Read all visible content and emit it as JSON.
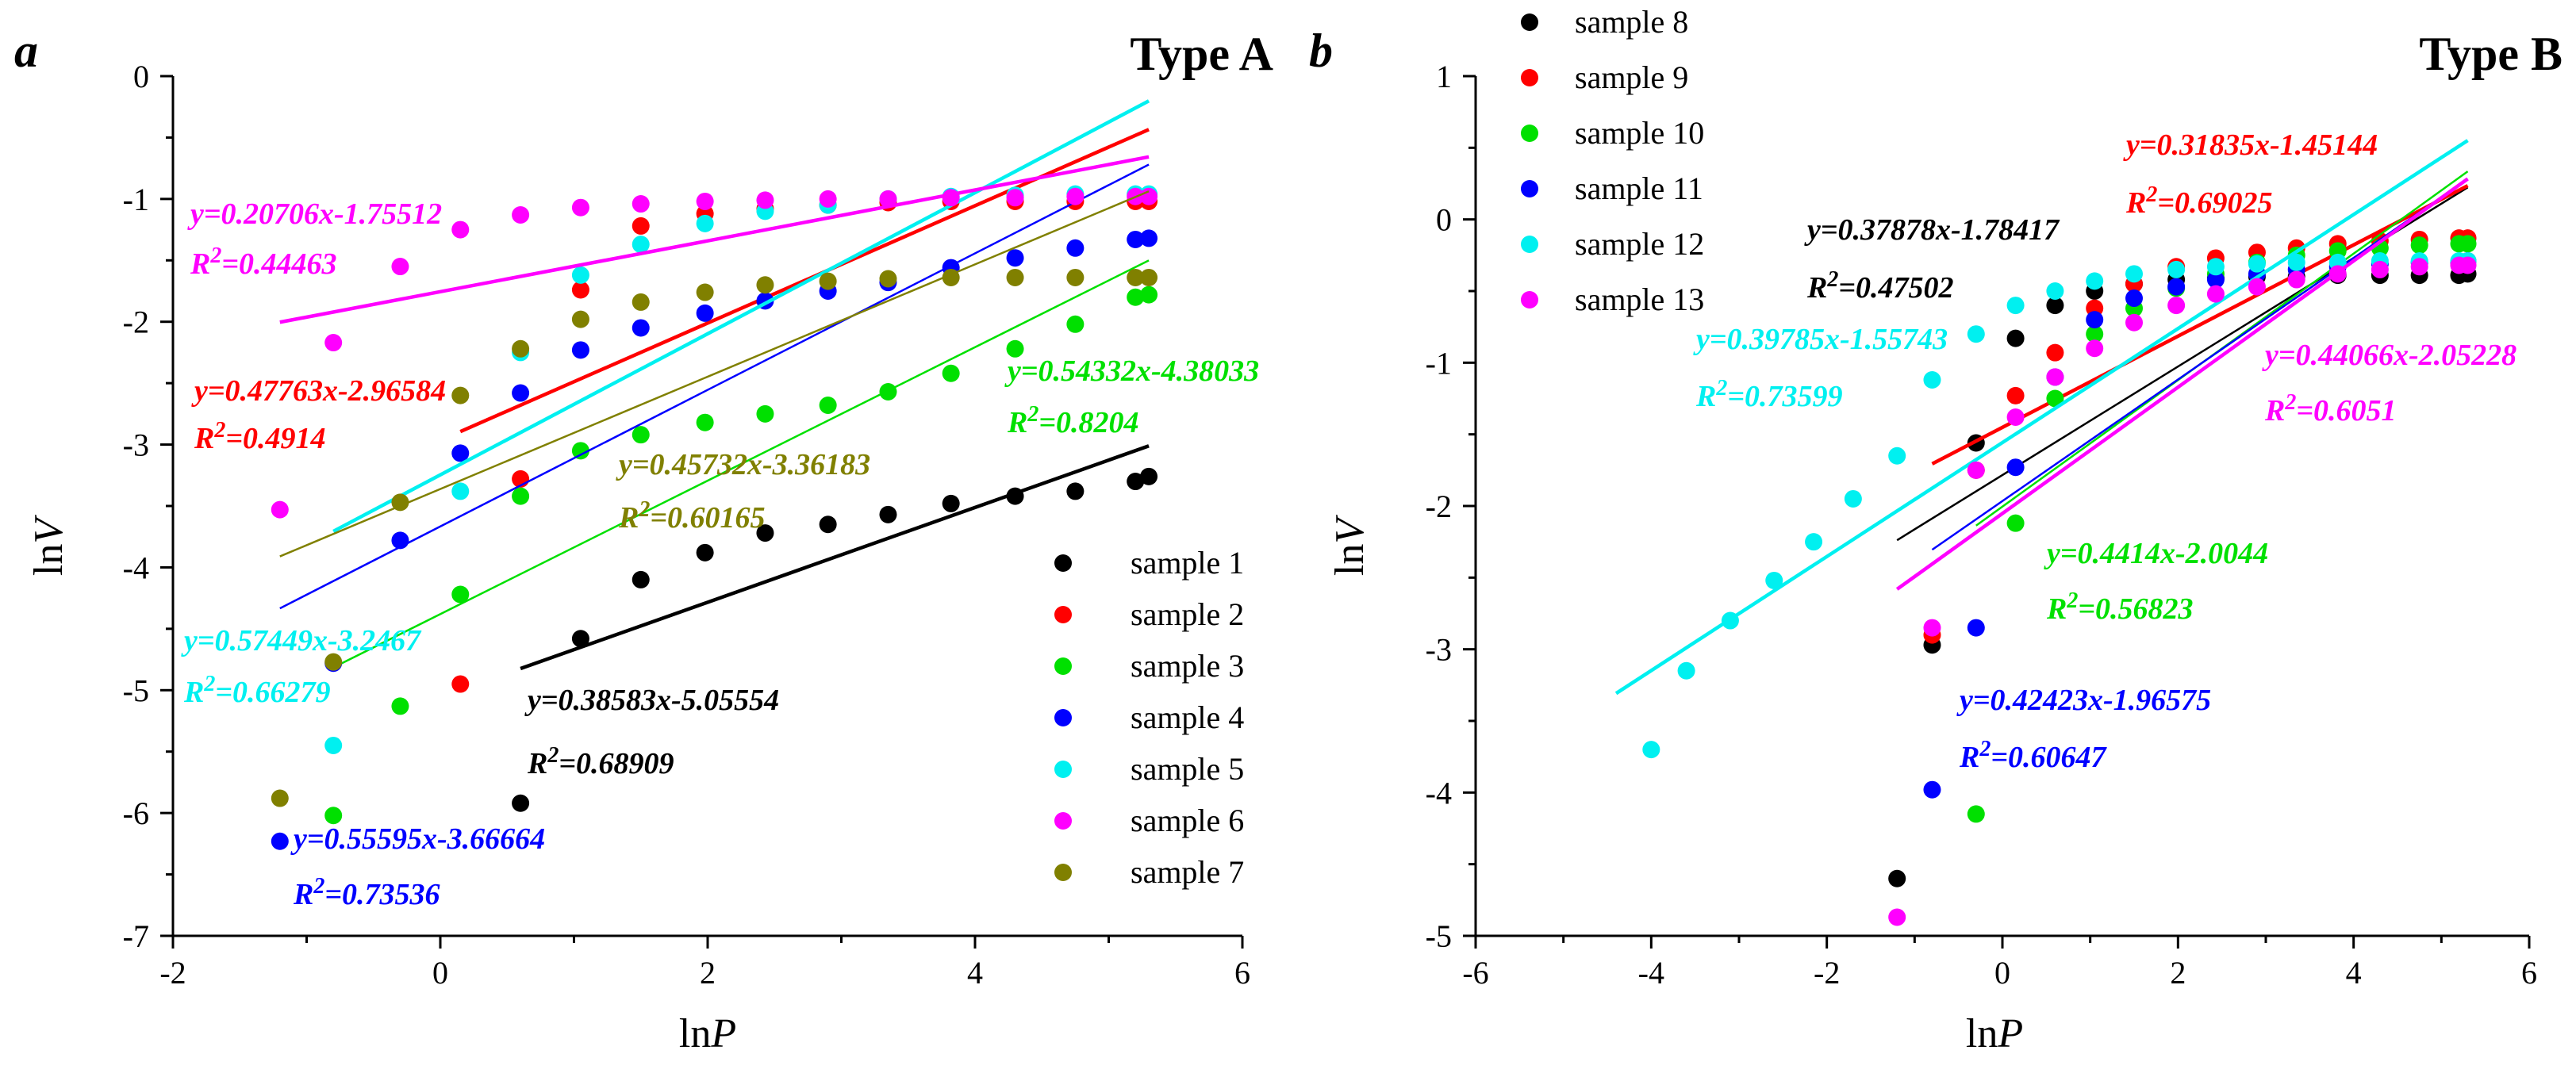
{
  "chart_data": [
    {
      "panel": "a",
      "type": "scatter",
      "title": "Type A",
      "xlabel": "lnP",
      "ylabel": "lnV",
      "xlim": [
        -2,
        6
      ],
      "ylim": [
        -7,
        0
      ],
      "xticks": [
        "-2",
        "0",
        "2",
        "4",
        "6"
      ],
      "yticks": [
        "0",
        "-1",
        "-2",
        "-3",
        "-4",
        "-5",
        "-6",
        "-7"
      ],
      "legend_position": "bottom-right",
      "series": [
        {
          "name": "sample 1",
          "color": "#000000",
          "x": [
            0.6,
            1.05,
            1.5,
            1.98,
            2.43,
            2.9,
            3.35,
            3.82,
            4.3,
            4.75,
            5.2,
            5.3
          ],
          "y": [
            -5.92,
            -4.58,
            -4.1,
            -3.88,
            -3.72,
            -3.65,
            -3.57,
            -3.48,
            -3.42,
            -3.38,
            -3.3,
            -3.26
          ],
          "fit_x": [
            0.6,
            5.3
          ],
          "eq": "y=0.38583x-5.05554",
          "r2": "=0.68909"
        },
        {
          "name": "sample 2",
          "color": "#ff0000",
          "x": [
            0.15,
            0.6,
            1.05,
            1.5,
            1.98,
            2.43,
            2.9,
            3.35,
            3.82,
            4.3,
            4.75,
            5.2,
            5.3
          ],
          "y": [
            -4.95,
            -3.28,
            -1.74,
            -1.22,
            -1.12,
            -1.08,
            -1.05,
            -1.03,
            -1.02,
            -1.02,
            -1.02,
            -1.02,
            -1.02
          ],
          "fit_x": [
            0.15,
            5.3
          ],
          "eq": "y=0.47763x-2.96584",
          "r2": "=0.4914"
        },
        {
          "name": "sample 3",
          "color": "#00e000",
          "x": [
            -0.8,
            -0.3,
            0.15,
            0.6,
            1.05,
            1.5,
            1.98,
            2.43,
            2.9,
            3.35,
            3.82,
            4.3,
            4.75,
            5.2,
            5.3
          ],
          "y": [
            -6.02,
            -5.13,
            -4.22,
            -3.42,
            -3.05,
            -2.92,
            -2.82,
            -2.75,
            -2.68,
            -2.57,
            -2.42,
            -2.22,
            -2.02,
            -1.8,
            -1.78
          ],
          "fit_x": [
            -0.8,
            5.3
          ],
          "eq": "y=0.54332x-4.38033",
          "r2": "=0.8204"
        },
        {
          "name": "sample 4",
          "color": "#0000ff",
          "x": [
            -1.2,
            -0.8,
            -0.3,
            0.15,
            0.6,
            1.05,
            1.5,
            1.98,
            2.43,
            2.9,
            3.35,
            3.82,
            4.3,
            4.75,
            5.2,
            5.3
          ],
          "y": [
            -6.23,
            -4.78,
            -3.78,
            -3.07,
            -2.58,
            -2.23,
            -2.05,
            -1.93,
            -1.83,
            -1.75,
            -1.68,
            -1.56,
            -1.48,
            -1.4,
            -1.33,
            -1.32
          ],
          "fit_x": [
            -1.2,
            5.3
          ],
          "eq": "y=0.55595x-3.66664",
          "r2": "=0.73536"
        },
        {
          "name": "sample 5",
          "color": "#00f0f0",
          "x": [
            -0.8,
            0.15,
            0.6,
            1.05,
            1.5,
            1.98,
            2.43,
            2.9,
            3.35,
            3.82,
            4.3,
            4.75,
            5.2,
            5.3
          ],
          "y": [
            -5.45,
            -3.38,
            -2.25,
            -1.62,
            -1.37,
            -1.2,
            -1.1,
            -1.05,
            -1.0,
            -0.98,
            -0.97,
            -0.96,
            -0.96,
            -0.96
          ],
          "fit_x": [
            -0.8,
            5.3
          ],
          "eq": "y=0.57449x-3.2467",
          "r2": "=0.66279"
        },
        {
          "name": "sample 6",
          "color": "#ff00ff",
          "x": [
            -1.2,
            -0.8,
            -0.3,
            0.15,
            0.6,
            1.05,
            1.5,
            1.98,
            2.43,
            2.9,
            3.35,
            3.82,
            4.3,
            4.75,
            5.2,
            5.3
          ],
          "y": [
            -3.53,
            -2.17,
            -1.55,
            -1.25,
            -1.13,
            -1.07,
            -1.04,
            -1.02,
            -1.01,
            -1.0,
            -1.0,
            -0.99,
            -0.99,
            -0.98,
            -0.98,
            -0.98
          ],
          "fit_x": [
            -1.2,
            5.3
          ],
          "eq": "y=0.20706x-1.75512",
          "r2": "=0.44463"
        },
        {
          "name": "sample 7",
          "color": "#808000",
          "x": [
            -1.2,
            -0.8,
            -0.3,
            0.15,
            0.6,
            1.05,
            1.5,
            1.98,
            2.43,
            2.9,
            3.35,
            3.82,
            4.3,
            4.75,
            5.2,
            5.3
          ],
          "y": [
            -5.88,
            -4.77,
            -3.47,
            -2.6,
            -2.22,
            -1.98,
            -1.84,
            -1.76,
            -1.7,
            -1.67,
            -1.65,
            -1.64,
            -1.64,
            -1.64,
            -1.64,
            -1.64
          ],
          "fit_x": [
            -1.2,
            5.3
          ],
          "eq": "y=0.45732x-3.36183",
          "r2": "=0.60165"
        }
      ]
    },
    {
      "panel": "b",
      "type": "scatter",
      "title": "Type B",
      "xlabel": "lnP",
      "ylabel": "lnV",
      "xlim": [
        -6,
        6
      ],
      "ylim": [
        -5,
        1
      ],
      "xticks": [
        "-6",
        "-4",
        "-2",
        "0",
        "2",
        "4",
        "6"
      ],
      "yticks": [
        "1",
        "0",
        "-1",
        "-2",
        "-3",
        "-4",
        "-5"
      ],
      "legend_position": "top-left",
      "series": [
        {
          "name": "sample 8",
          "color": "#000000",
          "x": [
            -1.2,
            -0.8,
            -0.3,
            0.15,
            0.6,
            1.05,
            1.5,
            1.98,
            2.43,
            2.9,
            3.35,
            3.82,
            4.3,
            4.75,
            5.2,
            5.3
          ],
          "y": [
            -4.6,
            -2.97,
            -1.56,
            -0.83,
            -0.6,
            -0.5,
            -0.45,
            -0.42,
            -0.41,
            -0.4,
            -0.4,
            -0.39,
            -0.39,
            -0.39,
            -0.39,
            -0.38
          ],
          "fit_x": [
            -1.2,
            5.3
          ],
          "eq": "y=0.37878x-1.78417",
          "r2": "=0.47502"
        },
        {
          "name": "sample 9",
          "color": "#ff0000",
          "x": [
            -0.8,
            -0.3,
            0.15,
            0.6,
            1.05,
            1.5,
            1.98,
            2.43,
            2.9,
            3.35,
            3.82,
            4.3,
            4.75,
            5.2,
            5.3
          ],
          "y": [
            -2.9,
            -1.75,
            -1.23,
            -0.93,
            -0.62,
            -0.45,
            -0.33,
            -0.27,
            -0.23,
            -0.2,
            -0.17,
            -0.15,
            -0.14,
            -0.13,
            -0.13
          ],
          "fit_x": [
            -0.8,
            5.3
          ],
          "eq": "y=0.31835x-1.45144",
          "r2": "=0.69025"
        },
        {
          "name": "sample 10",
          "color": "#00e000",
          "x": [
            -0.3,
            0.15,
            0.6,
            1.05,
            1.5,
            1.98,
            2.43,
            2.9,
            3.35,
            3.82,
            4.3,
            4.75,
            5.2,
            5.3
          ],
          "y": [
            -4.15,
            -2.12,
            -1.25,
            -0.8,
            -0.62,
            -0.48,
            -0.38,
            -0.3,
            -0.25,
            -0.22,
            -0.2,
            -0.18,
            -0.17,
            -0.17
          ],
          "fit_x": [
            -0.3,
            5.3
          ],
          "eq": "y=0.4414x-2.0044",
          "r2": "=0.56823"
        },
        {
          "name": "sample 11",
          "color": "#0000ff",
          "x": [
            -0.8,
            -0.3,
            0.15,
            0.6,
            1.05,
            1.5,
            1.98,
            2.43,
            2.9,
            3.35,
            3.82,
            4.3,
            4.75,
            5.2,
            5.3
          ],
          "y": [
            -3.98,
            -2.85,
            -1.73,
            -1.1,
            -0.7,
            -0.55,
            -0.47,
            -0.42,
            -0.38,
            -0.35,
            -0.33,
            -0.31,
            -0.3,
            -0.3,
            -0.29
          ],
          "fit_x": [
            -0.8,
            5.3
          ],
          "eq": "y=0.42423x-1.96575",
          "r2": "=0.60647"
        },
        {
          "name": "sample 12",
          "color": "#00f0f0",
          "x": [
            -4.0,
            -3.6,
            -3.1,
            -2.6,
            -2.15,
            -1.7,
            -1.2,
            -0.8,
            -0.3,
            0.15,
            0.6,
            1.05,
            1.5,
            1.98,
            2.43,
            2.9,
            3.35,
            3.82,
            4.3,
            4.75,
            5.2,
            5.3
          ],
          "y": [
            -3.7,
            -3.15,
            -2.8,
            -2.52,
            -2.25,
            -1.95,
            -1.65,
            -1.12,
            -0.8,
            -0.6,
            -0.5,
            -0.43,
            -0.38,
            -0.35,
            -0.33,
            -0.31,
            -0.3,
            -0.3,
            -0.29,
            -0.29,
            -0.29,
            -0.29
          ],
          "fit_x": [
            -4.4,
            5.3
          ],
          "eq": "y=0.39785x-1.55743",
          "r2": "=0.73599"
        },
        {
          "name": "sample 13",
          "color": "#ff00ff",
          "x": [
            -1.2,
            -0.8,
            -0.3,
            0.15,
            0.6,
            1.05,
            1.5,
            1.98,
            2.43,
            2.9,
            3.35,
            3.82,
            4.3,
            4.75,
            5.2,
            5.3
          ],
          "y": [
            -4.87,
            -2.85,
            -1.75,
            -1.38,
            -1.1,
            -0.9,
            -0.72,
            -0.6,
            -0.52,
            -0.47,
            -0.42,
            -0.38,
            -0.35,
            -0.33,
            -0.32,
            -0.32
          ],
          "fit_x": [
            -1.2,
            5.3
          ],
          "eq": "y=0.44066x-2.05228",
          "r2": "=0.6051"
        }
      ]
    }
  ]
}
